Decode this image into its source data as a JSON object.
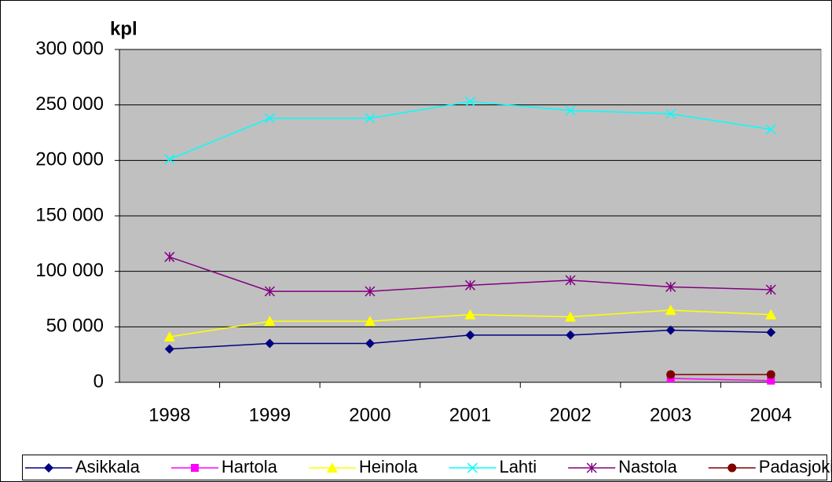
{
  "chart_data": {
    "type": "line",
    "y_label": "kpl",
    "categories": [
      "1998",
      "1999",
      "2000",
      "2001",
      "2002",
      "2003",
      "2004"
    ],
    "series": [
      {
        "name": "Asikkala",
        "color": "#000080",
        "marker": "diamond",
        "values": [
          30000,
          35000,
          35000,
          42500,
          42500,
          47000,
          45000
        ]
      },
      {
        "name": "Hartola",
        "color": "#ff00ff",
        "marker": "square",
        "values": [
          null,
          null,
          null,
          null,
          null,
          3500,
          1500
        ]
      },
      {
        "name": "Heinola",
        "color": "#ffff00",
        "marker": "triangle",
        "values": [
          41000,
          55000,
          55000,
          61000,
          59000,
          65000,
          61000
        ]
      },
      {
        "name": "Lahti",
        "color": "#00ffff",
        "marker": "x",
        "values": [
          201000,
          238000,
          238000,
          253000,
          245000,
          242000,
          228000
        ]
      },
      {
        "name": "Nastola",
        "color": "#800080",
        "marker": "star",
        "values": [
          113000,
          82000,
          82000,
          87500,
          92000,
          86000,
          83500
        ]
      },
      {
        "name": "Padasjoki",
        "color": "#800000",
        "marker": "circle",
        "values": [
          null,
          null,
          null,
          null,
          null,
          7000,
          7000
        ]
      }
    ],
    "ylim": [
      0,
      300000
    ],
    "yticks": [
      {
        "value": 0,
        "label": "0"
      },
      {
        "value": 50000,
        "label": "50 000"
      },
      {
        "value": 100000,
        "label": "100 000"
      },
      {
        "value": 150000,
        "label": "150 000"
      },
      {
        "value": 200000,
        "label": "200 000"
      },
      {
        "value": 250000,
        "label": "250 000"
      },
      {
        "value": 300000,
        "label": "300 000"
      }
    ],
    "grid": true,
    "legend": "bottom",
    "plot_background": "#c0c0c0"
  }
}
